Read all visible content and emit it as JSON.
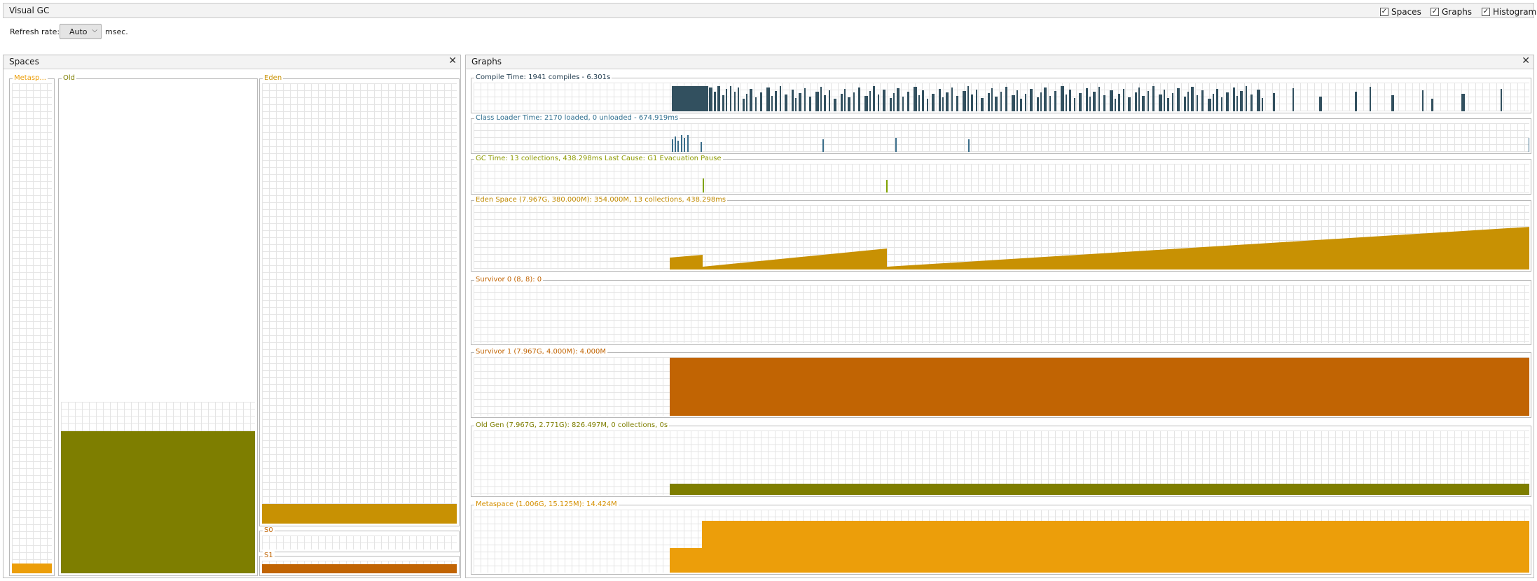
{
  "app": {
    "title": "Visual GC",
    "checks": [
      {
        "label": "Spaces",
        "checked": true
      },
      {
        "label": "Graphs",
        "checked": true
      },
      {
        "label": "Histogram",
        "checked": true
      }
    ]
  },
  "refresh": {
    "label": "Refresh rate:",
    "value": "Auto",
    "unit": "msec."
  },
  "spaces_panel": {
    "title": "Spaces",
    "spaces": {
      "metaspace": {
        "label": "Metasp...",
        "color": "#ec9e0a",
        "fill": 0.014
      },
      "old": {
        "label": "Old",
        "color": "#7e7e00",
        "fill": 0.292,
        "committed": 0.348
      },
      "eden": {
        "label": "Eden",
        "color": "#c89103",
        "fill": 0.04
      },
      "s0": {
        "label": "S0",
        "color": "#c16403",
        "fill": 0
      },
      "s1": {
        "label": "S1",
        "color": "#c16403",
        "fill": 1
      }
    }
  },
  "graphs_panel": {
    "title": "Graphs",
    "graphs": [
      {
        "id": "compile",
        "label": "Compile Time: 1941 compiles - 6.301s",
        "label_color": "#1f3a4d",
        "color": "#32505f"
      },
      {
        "id": "classloader",
        "label": "Class Loader Time: 2170 loaded, 0 unloaded - 674.919ms",
        "label_color": "#2e6e8e",
        "color": "#3a6d8a"
      },
      {
        "id": "gc",
        "label": "GC Time: 13 collections, 438.298ms Last Cause: G1 Evacuation Pause",
        "label_color": "#8d9a00",
        "color": "#7fa200"
      },
      {
        "id": "eden",
        "label": "Eden Space (7.967G, 380.000M): 354.000M, 13 collections, 438.298ms",
        "label_color": "#c08900",
        "color": "#c89103"
      },
      {
        "id": "survivor0",
        "label": "Survivor 0 (8, 8): 0",
        "label_color": "#c16403",
        "color": "#c16403"
      },
      {
        "id": "survivor1",
        "label": "Survivor 1 (7.967G, 4.000M): 4.000M",
        "label_color": "#c16403",
        "color": "#c16403"
      },
      {
        "id": "oldgen",
        "label": "Old Gen (7.967G, 2.771G): 826.497M, 0 collections, 0s",
        "label_color": "#7e7e00",
        "color": "#7e7e00"
      },
      {
        "id": "metaspace",
        "label": "Metaspace (1.006G, 15.125M): 14.424M",
        "label_color": "#d48f00",
        "color": "#ec9e0a"
      }
    ]
  }
}
